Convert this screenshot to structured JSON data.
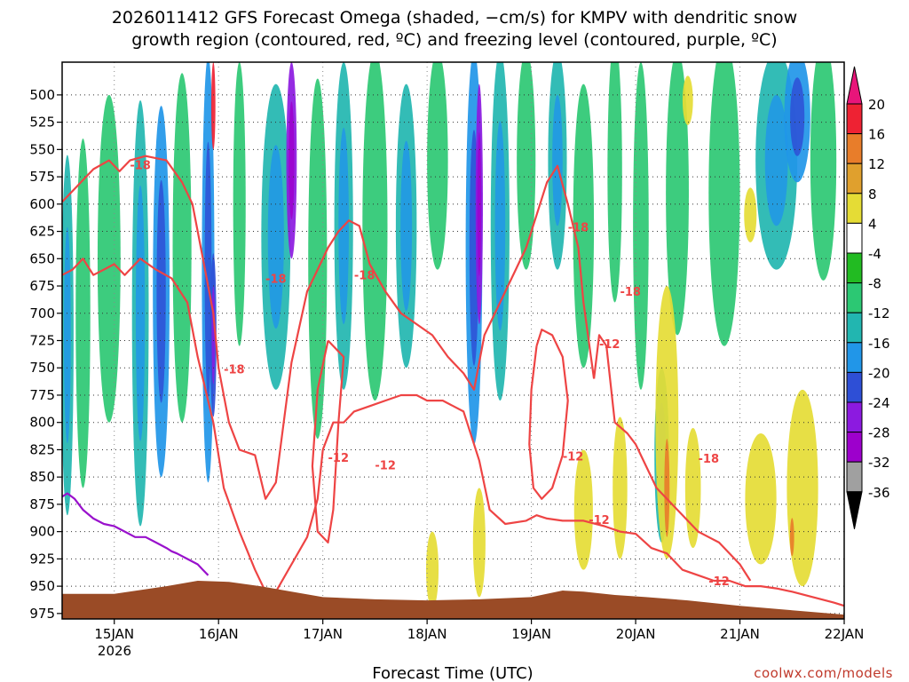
{
  "chart_data": {
    "type": "heatmap",
    "title_line1": "2026011412 GFS Forecast Omega (shaded, −cm/s) for KMPV with dendritic snow",
    "title_line2": "growth region (contoured, red, ºC) and freezing level (contoured, purple, ºC)",
    "xlabel": "Forecast Time (UTC)",
    "credit": "coolwx.com/models",
    "x_ticks": [
      "15JAN",
      "16JAN",
      "17JAN",
      "18JAN",
      "19JAN",
      "20JAN",
      "21JAN",
      "22JAN"
    ],
    "x_year_label": "2026",
    "x_range_days": [
      14.5,
      22.0
    ],
    "y_ticks": [
      500,
      525,
      550,
      575,
      600,
      625,
      650,
      675,
      700,
      725,
      750,
      775,
      800,
      825,
      850,
      875,
      900,
      925,
      950,
      975
    ],
    "y_range_hpa": [
      470,
      980
    ],
    "colorbar": {
      "ticks": [
        20,
        16,
        12,
        8,
        4,
        -4,
        -8,
        -12,
        -16,
        -20,
        -24,
        -28,
        -32,
        -36
      ],
      "colors": [
        "#ee2233",
        "#e87d2a",
        "#e0a02d",
        "#e5dc35",
        "#ffffff",
        "#22bb22",
        "#2cc873",
        "#22b6b0",
        "#2196e8",
        "#2e4fd6",
        "#8c1ae0",
        "#9d00cc",
        "#a0a0a0"
      ]
    },
    "contour_labels": [
      "-18",
      "-18",
      "-18",
      "-18",
      "-18",
      "-18",
      "-18",
      "-18",
      "-12",
      "-12",
      "-12",
      "-12",
      "-12",
      "-12"
    ],
    "shading_blobs": [
      {
        "x": 14.55,
        "p": 720,
        "w": 0.12,
        "h": 330,
        "v": -12
      },
      {
        "x": 14.7,
        "p": 700,
        "w": 0.14,
        "h": 320,
        "v": -8
      },
      {
        "x": 14.95,
        "p": 650,
        "w": 0.22,
        "h": 300,
        "v": -8
      },
      {
        "x": 15.25,
        "p": 700,
        "w": 0.16,
        "h": 390,
        "v": -12
      },
      {
        "x": 15.45,
        "p": 680,
        "w": 0.16,
        "h": 340,
        "v": -16
      },
      {
        "x": 15.65,
        "p": 640,
        "w": 0.18,
        "h": 320,
        "v": -8
      },
      {
        "x": 15.9,
        "p": 660,
        "w": 0.12,
        "h": 390,
        "v": -16
      },
      {
        "x": 15.95,
        "p": 720,
        "w": 0.06,
        "h": 150,
        "v": -20
      },
      {
        "x": 16.2,
        "p": 600,
        "w": 0.12,
        "h": 260,
        "v": -8
      },
      {
        "x": 16.55,
        "p": 630,
        "w": 0.28,
        "h": 280,
        "v": -12
      },
      {
        "x": 16.7,
        "p": 560,
        "w": 0.1,
        "h": 180,
        "v": -24
      },
      {
        "x": 16.95,
        "p": 650,
        "w": 0.18,
        "h": 330,
        "v": -8
      },
      {
        "x": 17.2,
        "p": 620,
        "w": 0.18,
        "h": 300,
        "v": -12
      },
      {
        "x": 17.5,
        "p": 620,
        "w": 0.24,
        "h": 320,
        "v": -8
      },
      {
        "x": 17.8,
        "p": 620,
        "w": 0.2,
        "h": 260,
        "v": -12
      },
      {
        "x": 18.1,
        "p": 560,
        "w": 0.2,
        "h": 200,
        "v": -8
      },
      {
        "x": 18.45,
        "p": 640,
        "w": 0.16,
        "h": 360,
        "v": -16
      },
      {
        "x": 18.5,
        "p": 600,
        "w": 0.07,
        "h": 220,
        "v": -24
      },
      {
        "x": 18.7,
        "p": 620,
        "w": 0.18,
        "h": 320,
        "v": -12
      },
      {
        "x": 18.95,
        "p": 560,
        "w": 0.18,
        "h": 200,
        "v": -8
      },
      {
        "x": 19.25,
        "p": 560,
        "w": 0.18,
        "h": 200,
        "v": -12
      },
      {
        "x": 19.5,
        "p": 620,
        "w": 0.2,
        "h": 260,
        "v": -8
      },
      {
        "x": 19.8,
        "p": 570,
        "w": 0.14,
        "h": 240,
        "v": -8
      },
      {
        "x": 20.05,
        "p": 620,
        "w": 0.15,
        "h": 300,
        "v": -8
      },
      {
        "x": 20.25,
        "p": 830,
        "w": 0.14,
        "h": 160,
        "v": -12
      },
      {
        "x": 20.4,
        "p": 590,
        "w": 0.22,
        "h": 260,
        "v": -8
      },
      {
        "x": 20.85,
        "p": 590,
        "w": 0.3,
        "h": 280,
        "v": -8
      },
      {
        "x": 21.35,
        "p": 560,
        "w": 0.4,
        "h": 200,
        "v": -12
      },
      {
        "x": 21.55,
        "p": 520,
        "w": 0.25,
        "h": 120,
        "v": -16
      },
      {
        "x": 21.8,
        "p": 560,
        "w": 0.25,
        "h": 220,
        "v": -8
      },
      {
        "x": 18.05,
        "p": 935,
        "w": 0.12,
        "h": 70,
        "v": 4
      },
      {
        "x": 18.5,
        "p": 910,
        "w": 0.12,
        "h": 100,
        "v": 4
      },
      {
        "x": 19.5,
        "p": 880,
        "w": 0.18,
        "h": 110,
        "v": 4
      },
      {
        "x": 19.85,
        "p": 860,
        "w": 0.14,
        "h": 130,
        "v": 4
      },
      {
        "x": 20.3,
        "p": 800,
        "w": 0.22,
        "h": 250,
        "v": 4
      },
      {
        "x": 20.3,
        "p": 860,
        "w": 0.05,
        "h": 90,
        "v": 12
      },
      {
        "x": 20.55,
        "p": 860,
        "w": 0.15,
        "h": 110,
        "v": 4
      },
      {
        "x": 21.2,
        "p": 870,
        "w": 0.3,
        "h": 120,
        "v": 4
      },
      {
        "x": 21.6,
        "p": 860,
        "w": 0.3,
        "h": 180,
        "v": 4
      },
      {
        "x": 21.5,
        "p": 905,
        "w": 0.04,
        "h": 35,
        "v": 12
      },
      {
        "x": 21.1,
        "p": 610,
        "w": 0.12,
        "h": 50,
        "v": 4
      },
      {
        "x": 20.5,
        "p": 505,
        "w": 0.1,
        "h": 45,
        "v": 4
      },
      {
        "x": 15.95,
        "p": 510,
        "w": 0.04,
        "h": 80,
        "v": 16
      }
    ],
    "contours": [
      {
        "name": "dgz-top",
        "color": "#ee4444",
        "x": [
          14.5,
          14.6,
          14.7,
          14.8,
          14.95,
          15.05,
          15.15,
          15.3,
          15.5,
          15.65,
          15.75,
          15.85,
          15.95,
          16.0,
          16.1,
          16.2,
          16.35,
          16.45,
          16.55,
          16.7,
          16.85,
          16.95,
          17.05,
          17.15,
          17.25,
          17.35,
          17.45,
          17.6,
          17.75,
          17.9,
          18.05,
          18.2,
          18.35,
          18.45,
          18.55,
          18.7,
          18.85,
          18.95,
          19.05,
          19.15,
          19.25,
          19.35,
          19.45,
          19.5,
          19.6
        ],
        "p": [
          598,
          588,
          578,
          568,
          560,
          570,
          560,
          556,
          560,
          580,
          600,
          650,
          700,
          750,
          800,
          825,
          830,
          870,
          855,
          745,
          680,
          660,
          640,
          625,
          615,
          620,
          655,
          680,
          700,
          710,
          720,
          740,
          755,
          770,
          720,
          690,
          660,
          640,
          610,
          580,
          565,
          600,
          640,
          690,
          760
        ]
      },
      {
        "name": "dgz-bottom",
        "color": "#ee4444",
        "x": [
          14.5,
          14.6,
          14.7,
          14.8,
          14.9,
          15.0,
          15.1,
          15.25,
          15.4,
          15.55,
          15.7,
          15.8,
          15.95,
          16.05,
          16.2,
          16.35,
          16.45,
          16.55,
          16.7,
          16.85,
          16.95,
          17.0,
          17.1,
          17.2,
          17.3,
          17.45,
          17.6,
          17.75,
          17.9,
          18.0,
          18.15,
          18.35,
          18.5,
          18.6,
          18.75,
          18.95,
          19.05,
          19.15,
          19.3,
          19.5,
          19.7,
          19.85,
          20.0,
          20.15,
          20.3,
          20.45,
          20.6,
          20.75,
          20.9,
          21.05,
          21.2,
          21.35,
          21.5,
          21.7,
          21.9,
          22.0
        ],
        "p": [
          665,
          660,
          650,
          665,
          660,
          655,
          665,
          650,
          660,
          668,
          690,
          740,
          800,
          860,
          900,
          935,
          955,
          955,
          930,
          905,
          870,
          825,
          800,
          800,
          790,
          785,
          780,
          775,
          775,
          780,
          780,
          790,
          835,
          880,
          893,
          890,
          885,
          888,
          890,
          890,
          895,
          900,
          902,
          915,
          920,
          935,
          940,
          945,
          945,
          950,
          950,
          952,
          955,
          960,
          965,
          968
        ]
      },
      {
        "name": "-12-loop-1",
        "color": "#ee4444",
        "x": [
          17.05,
          16.95,
          16.9,
          16.95,
          17.05,
          17.1,
          17.15,
          17.2,
          17.05
        ],
        "p": [
          725,
          770,
          840,
          900,
          910,
          880,
          800,
          740,
          725
        ]
      },
      {
        "name": "-12-loop-2",
        "color": "#ee4444",
        "x": [
          19.05,
          19.0,
          18.98,
          19.02,
          19.1,
          19.2,
          19.3,
          19.35,
          19.3,
          19.2,
          19.1,
          19.05
        ],
        "p": [
          730,
          770,
          820,
          860,
          870,
          860,
          830,
          780,
          740,
          720,
          715,
          730
        ]
      },
      {
        "name": "-18-right",
        "color": "#ee4444",
        "x": [
          19.6,
          19.65,
          19.72,
          19.8,
          19.92,
          20.0,
          20.1,
          20.2,
          20.3,
          20.4,
          20.5,
          20.6,
          20.7,
          20.8,
          20.9,
          21.0,
          21.1
        ],
        "p": [
          760,
          720,
          730,
          800,
          810,
          820,
          840,
          860,
          870,
          880,
          890,
          900,
          905,
          910,
          920,
          930,
          945
        ]
      },
      {
        "name": "freezing-level",
        "color": "#9911cc",
        "x": [
          14.5,
          14.55,
          14.62,
          14.7,
          14.8,
          14.9,
          15.0,
          15.1,
          15.2,
          15.3,
          15.4,
          15.5,
          15.55,
          15.6,
          15.7,
          15.8,
          15.85,
          15.9
        ],
        "p": [
          868,
          865,
          870,
          880,
          888,
          893,
          895,
          900,
          905,
          905,
          910,
          915,
          918,
          920,
          925,
          930,
          935,
          940
        ]
      }
    ],
    "terrain_surface_hpa": {
      "x": [
        14.5,
        15.0,
        15.5,
        15.8,
        16.1,
        16.4,
        16.7,
        17.0,
        17.5,
        18.0,
        18.5,
        19.0,
        19.3,
        19.5,
        19.8,
        20.1,
        20.5,
        21.0,
        21.5,
        22.0
      ],
      "p": [
        957,
        957,
        950,
        945,
        946,
        950,
        955,
        960,
        962,
        963,
        962,
        960,
        954,
        955,
        958,
        960,
        963,
        968,
        972,
        976
      ]
    }
  }
}
